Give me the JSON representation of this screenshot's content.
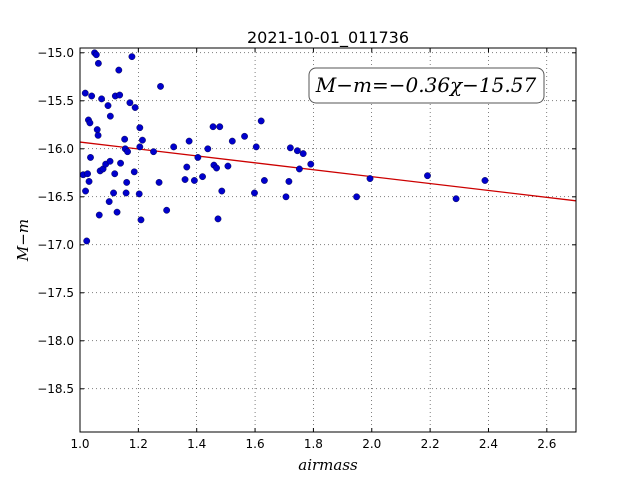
{
  "chart_data": {
    "type": "scatter",
    "title": "2021-10-01_011736",
    "xlabel": "airmass",
    "ylabel": "M−m",
    "xlim": [
      1.0,
      2.7
    ],
    "ylim": [
      -14.95,
      -18.95
    ],
    "y_inverted": true,
    "grid": true,
    "x_ticks": [
      1.0,
      1.2,
      1.4,
      1.6,
      1.8,
      2.0,
      2.2,
      2.4,
      2.6
    ],
    "x_tick_labels": [
      "1.0",
      "1.2",
      "1.4",
      "1.6",
      "1.8",
      "2.0",
      "2.2",
      "2.4",
      "2.6"
    ],
    "y_ticks": [
      -15.0,
      -15.5,
      -16.0,
      -16.5,
      -17.0,
      -17.5,
      -18.0,
      -18.5
    ],
    "y_tick_labels": [
      "−15.0",
      "−15.5",
      "−16.0",
      "−16.5",
      "−17.0",
      "−17.5",
      "−18.0",
      "−18.5"
    ],
    "annotation": "M−m=−0.36χ−15.57",
    "fit": {
      "slope": -0.36,
      "intercept": -15.57,
      "color": "#cc0000"
    },
    "marker_color": "#0000cc",
    "points": [
      [
        1.011,
        -16.27
      ],
      [
        1.018,
        -15.42
      ],
      [
        1.019,
        -16.44
      ],
      [
        1.023,
        -16.96
      ],
      [
        1.026,
        -16.26
      ],
      [
        1.029,
        -15.7
      ],
      [
        1.031,
        -16.34
      ],
      [
        1.034,
        -15.73
      ],
      [
        1.036,
        -16.09
      ],
      [
        1.04,
        -15.45
      ],
      [
        1.05,
        -15.0
      ],
      [
        1.056,
        -15.02
      ],
      [
        1.059,
        -15.8
      ],
      [
        1.062,
        -15.86
      ],
      [
        1.063,
        -15.11
      ],
      [
        1.066,
        -16.69
      ],
      [
        1.069,
        -16.23
      ],
      [
        1.074,
        -15.48
      ],
      [
        1.079,
        -16.21
      ],
      [
        1.088,
        -16.16
      ],
      [
        1.096,
        -15.55
      ],
      [
        1.1,
        -16.55
      ],
      [
        1.103,
        -16.13
      ],
      [
        1.104,
        -15.66
      ],
      [
        1.115,
        -16.46
      ],
      [
        1.119,
        -16.26
      ],
      [
        1.121,
        -15.45
      ],
      [
        1.127,
        -16.66
      ],
      [
        1.133,
        -15.18
      ],
      [
        1.136,
        -15.44
      ],
      [
        1.139,
        -16.15
      ],
      [
        1.153,
        -15.9
      ],
      [
        1.155,
        -16.0
      ],
      [
        1.158,
        -16.46
      ],
      [
        1.16,
        -16.35
      ],
      [
        1.163,
        -16.03
      ],
      [
        1.171,
        -15.52
      ],
      [
        1.178,
        -15.04
      ],
      [
        1.186,
        -16.24
      ],
      [
        1.189,
        -15.57
      ],
      [
        1.203,
        -16.47
      ],
      [
        1.205,
        -15.98
      ],
      [
        1.205,
        -15.78
      ],
      [
        1.209,
        -16.74
      ],
      [
        1.214,
        -15.91
      ],
      [
        1.252,
        -16.03
      ],
      [
        1.271,
        -16.35
      ],
      [
        1.276,
        -15.35
      ],
      [
        1.297,
        -16.64
      ],
      [
        1.321,
        -15.98
      ],
      [
        1.36,
        -16.32
      ],
      [
        1.366,
        -16.19
      ],
      [
        1.374,
        -15.92
      ],
      [
        1.392,
        -16.33
      ],
      [
        1.404,
        -16.09
      ],
      [
        1.42,
        -16.29
      ],
      [
        1.438,
        -16.0
      ],
      [
        1.456,
        -15.77
      ],
      [
        1.459,
        -16.17
      ],
      [
        1.468,
        -16.2
      ],
      [
        1.473,
        -16.73
      ],
      [
        1.479,
        -15.77
      ],
      [
        1.486,
        -16.44
      ],
      [
        1.507,
        -16.18
      ],
      [
        1.522,
        -15.92
      ],
      [
        1.564,
        -15.87
      ],
      [
        1.598,
        -16.46
      ],
      [
        1.604,
        -15.98
      ],
      [
        1.621,
        -15.71
      ],
      [
        1.632,
        -16.33
      ],
      [
        1.706,
        -16.5
      ],
      [
        1.716,
        -16.34
      ],
      [
        1.721,
        -15.99
      ],
      [
        1.745,
        -16.02
      ],
      [
        1.752,
        -16.21
      ],
      [
        1.765,
        -16.05
      ],
      [
        1.791,
        -16.16
      ],
      [
        1.948,
        -16.5
      ],
      [
        1.994,
        -16.31
      ],
      [
        2.191,
        -16.28
      ],
      [
        2.289,
        -16.52
      ],
      [
        2.388,
        -16.33
      ]
    ]
  }
}
